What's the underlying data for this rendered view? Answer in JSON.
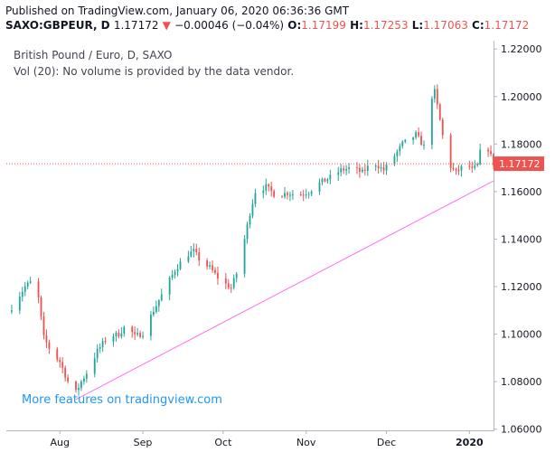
{
  "header": {
    "published": "Published on TradingView.com, January 06, 2020 06:36:36 GMT",
    "symbol": "SAXO:GBPEUR, D",
    "last": "1.17172",
    "change_arrow": "▼",
    "change": "−0.00046 (−0.04%)",
    "o_label": "O:",
    "o_value": "1.17199",
    "h_label": "H:",
    "h_value": "1.17253",
    "l_label": "L:",
    "l_value": "1.17063",
    "c_label": "C:",
    "c_value": "1.17172"
  },
  "legend": {
    "title": "British Pound / Euro, D, SAXO",
    "volume_note": "Vol (20): No volume is provided by the data vendor."
  },
  "promo_link": "More features on tradingview.com",
  "colors": {
    "up": "#26a69a",
    "down": "#ef5350",
    "trendline": "#ff6ef0",
    "price_line": "#ef5350",
    "axis_text": "#131722"
  },
  "chart_data": {
    "type": "candlestick",
    "y_ticks": [
      "1.06000",
      "1.08000",
      "1.10000",
      "1.12000",
      "1.14000",
      "1.16000",
      "1.18000",
      "1.20000",
      "1.22000"
    ],
    "ylim": [
      1.0595,
      1.2235
    ],
    "x_ticks": [
      {
        "label": "Aug",
        "day": 19
      },
      {
        "label": "Sep",
        "day": 50
      },
      {
        "label": "Oct",
        "day": 80
      },
      {
        "label": "Nov",
        "day": 111
      },
      {
        "label": "Dec",
        "day": 141
      },
      {
        "label": "2020",
        "day": 172
      }
    ],
    "xlim": [
      -1,
      181
    ],
    "current_price": 1.17172,
    "current_price_label": "1.17172",
    "trendline": {
      "start": {
        "day": 25,
        "price": 1.0725
      },
      "end": {
        "day": 181,
        "price": 1.1645
      }
    },
    "anchors": [
      [
        0,
        1.1095
      ],
      [
        6,
        1.12
      ],
      [
        9,
        1.1225
      ],
      [
        11,
        1.115
      ],
      [
        13,
        1.0985
      ],
      [
        16,
        1.092
      ],
      [
        19,
        1.0885
      ],
      [
        22,
        1.08
      ],
      [
        25,
        1.0755
      ],
      [
        27,
        1.08
      ],
      [
        30,
        1.0855
      ],
      [
        33,
        1.093
      ],
      [
        37,
        1.099
      ],
      [
        41,
        1.1
      ],
      [
        44,
        1.104
      ],
      [
        47,
        1.099
      ],
      [
        50,
        1.1005
      ],
      [
        54,
        1.11
      ],
      [
        58,
        1.1185
      ],
      [
        62,
        1.127
      ],
      [
        66,
        1.133
      ],
      [
        69,
        1.135
      ],
      [
        72,
        1.13
      ],
      [
        75,
        1.128
      ],
      [
        79,
        1.1225
      ],
      [
        83,
        1.1195
      ],
      [
        86,
        1.1285
      ],
      [
        88,
        1.14
      ],
      [
        90,
        1.151
      ],
      [
        92,
        1.16
      ],
      [
        96,
        1.162
      ],
      [
        100,
        1.158
      ],
      [
        104,
        1.1595
      ],
      [
        108,
        1.1585
      ],
      [
        112,
        1.16
      ],
      [
        116,
        1.1635
      ],
      [
        120,
        1.166
      ],
      [
        124,
        1.169
      ],
      [
        128,
        1.17
      ],
      [
        132,
        1.168
      ],
      [
        136,
        1.1725
      ],
      [
        140,
        1.169
      ],
      [
        144,
        1.175
      ],
      [
        147,
        1.18
      ],
      [
        150,
        1.182
      ],
      [
        152,
        1.184
      ],
      [
        155,
        1.179
      ],
      [
        157,
        1.198
      ],
      [
        159,
        1.202
      ],
      [
        161,
        1.19
      ],
      [
        163,
        1.177
      ],
      [
        165,
        1.1705
      ],
      [
        167,
        1.168
      ],
      [
        169,
        1.17
      ],
      [
        171,
        1.172
      ],
      [
        173,
        1.169
      ],
      [
        175,
        1.171
      ],
      [
        177,
        1.182
      ],
      [
        179,
        1.178
      ],
      [
        181,
        1.17172
      ]
    ]
  }
}
